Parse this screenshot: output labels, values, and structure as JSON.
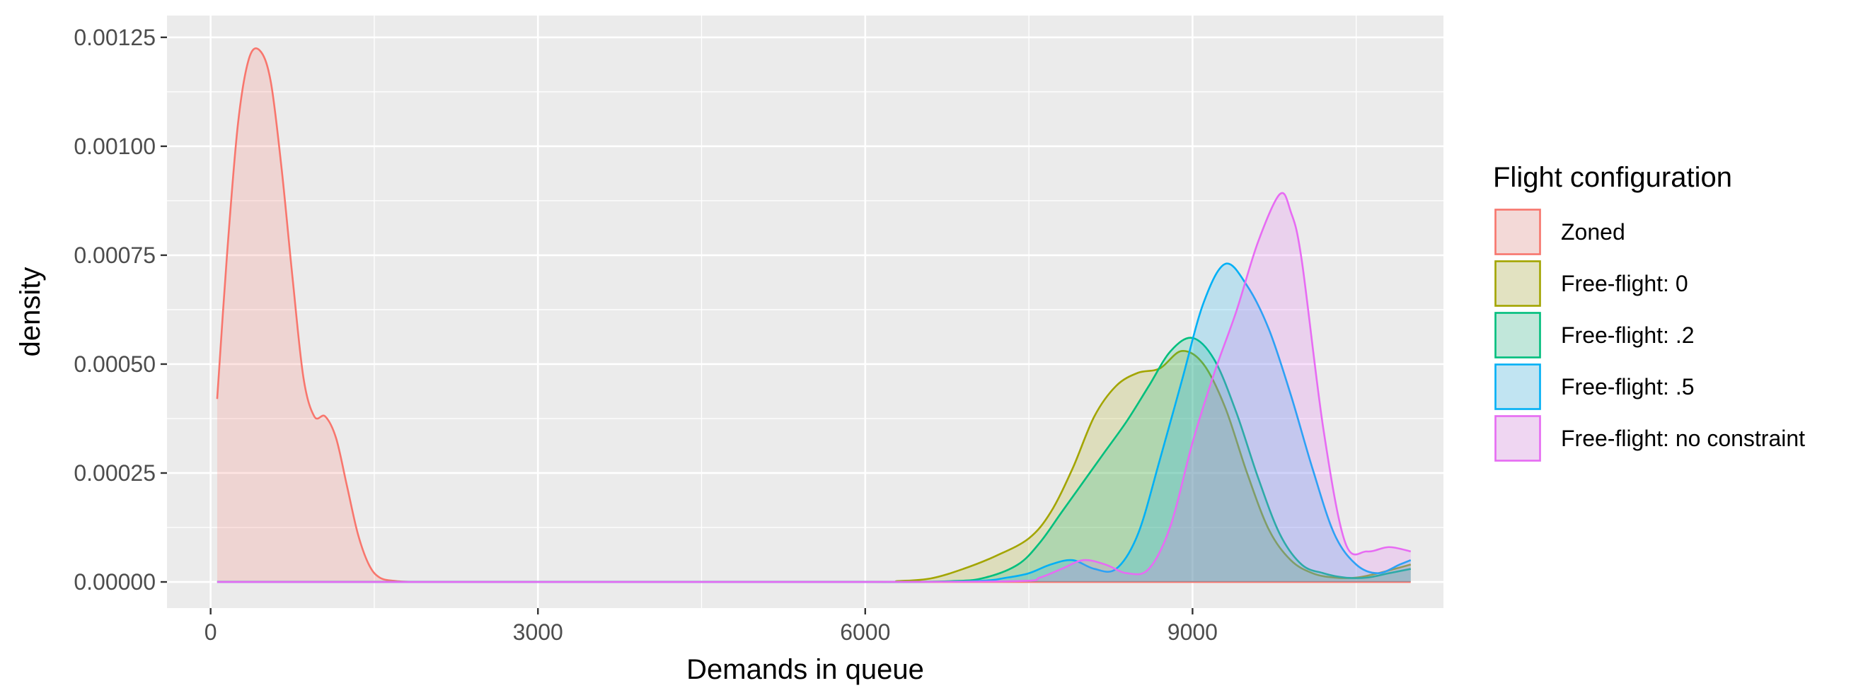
{
  "chart_data": {
    "type": "area",
    "title": "",
    "xlabel": "Demands in queue",
    "ylabel": "density",
    "xlim": [
      -400,
      11300
    ],
    "ylim": [
      -6e-05,
      0.0013
    ],
    "x_ticks": [
      0,
      3000,
      6000,
      9000
    ],
    "x_tick_labels": [
      "0",
      "3000",
      "6000",
      "9000"
    ],
    "y_ticks": [
      0,
      0.00025,
      0.0005,
      0.00075,
      0.001,
      0.00125
    ],
    "y_tick_labels": [
      "0.00000",
      "0.00025",
      "0.00050",
      "0.00075",
      "0.00100",
      "0.00125"
    ],
    "grid": true,
    "legend": {
      "title": "Flight configuration",
      "position": "right",
      "entries": [
        "Zoned",
        "Free-flight: 0",
        "Free-flight: .2",
        "Free-flight: .5",
        "Free-flight: no constraint"
      ]
    },
    "colors": [
      "#F8766D",
      "#A3A500",
      "#00BF7D",
      "#00B0F6",
      "#E76BF3"
    ],
    "series": [
      {
        "name": "Zoned",
        "x": [
          60,
          150,
          250,
          350,
          450,
          550,
          650,
          750,
          850,
          950,
          1050,
          1150,
          1250,
          1350,
          1450,
          1550,
          1700,
          1900,
          2200,
          3000,
          6000,
          9000,
          11000
        ],
        "y": [
          0.00042,
          0.00075,
          0.00105,
          0.0012,
          0.00122,
          0.00115,
          0.00095,
          0.0007,
          0.00047,
          0.00038,
          0.00038,
          0.00033,
          0.00022,
          0.00011,
          4e-05,
          1e-05,
          2e-06,
          0,
          0,
          0,
          0,
          0,
          0
        ]
      },
      {
        "name": "Free-flight: 0",
        "x": [
          60,
          3000,
          6000,
          6300,
          6600,
          6900,
          7200,
          7500,
          7700,
          7900,
          8100,
          8300,
          8500,
          8700,
          8900,
          9100,
          9300,
          9500,
          9700,
          9900,
          10100,
          10300,
          10500,
          10700,
          11000
        ],
        "y": [
          0,
          0,
          0,
          2e-06,
          8e-06,
          3e-05,
          6e-05,
          0.0001,
          0.00016,
          0.00026,
          0.00038,
          0.00045,
          0.00048,
          0.00049,
          0.00053,
          0.0005,
          0.0004,
          0.00025,
          0.00012,
          5e-05,
          2e-05,
          1e-05,
          1e-05,
          2e-05,
          4e-05
        ]
      },
      {
        "name": "Free-flight: .2",
        "x": [
          60,
          3000,
          6000,
          6800,
          7100,
          7400,
          7600,
          7800,
          8000,
          8200,
          8400,
          8600,
          8800,
          9000,
          9200,
          9400,
          9600,
          9800,
          10000,
          10200,
          10400,
          10600,
          10800,
          11000
        ],
        "y": [
          0,
          0,
          0,
          2e-06,
          1e-05,
          4e-05,
          9e-05,
          0.00016,
          0.00023,
          0.0003,
          0.00037,
          0.00045,
          0.00053,
          0.00056,
          0.00051,
          0.00039,
          0.00024,
          0.00011,
          4e-05,
          2e-05,
          1e-05,
          1e-05,
          2e-05,
          3e-05
        ]
      },
      {
        "name": "Free-flight: .5",
        "x": [
          60,
          3000,
          6000,
          7000,
          7300,
          7500,
          7700,
          7900,
          8100,
          8300,
          8500,
          8700,
          8900,
          9100,
          9300,
          9500,
          9700,
          9900,
          10100,
          10300,
          10500,
          10700,
          10900,
          11000
        ],
        "y": [
          0,
          0,
          0,
          2e-06,
          1e-05,
          2e-05,
          4e-05,
          5e-05,
          3e-05,
          3e-05,
          0.00011,
          0.00028,
          0.00046,
          0.00064,
          0.00073,
          0.00068,
          0.00058,
          0.00043,
          0.00026,
          0.00011,
          4e-05,
          2e-05,
          4e-05,
          5e-05
        ]
      },
      {
        "name": "Free-flight: no constraint",
        "x": [
          60,
          3000,
          6000,
          7400,
          7600,
          7800,
          8000,
          8200,
          8400,
          8600,
          8800,
          9000,
          9200,
          9400,
          9600,
          9800,
          9900,
          10000,
          10200,
          10400,
          10600,
          10800,
          11000
        ],
        "y": [
          0,
          0,
          0,
          2e-06,
          1e-05,
          3e-05,
          5e-05,
          4e-05,
          2e-05,
          3e-05,
          0.00013,
          0.00032,
          0.00048,
          0.00062,
          0.00078,
          0.00089,
          0.00085,
          0.00074,
          0.00035,
          9e-05,
          7e-05,
          8e-05,
          7e-05
        ]
      }
    ]
  }
}
